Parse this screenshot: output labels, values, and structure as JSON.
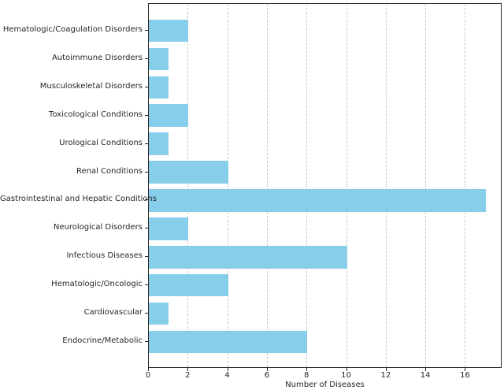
{
  "chart_data": {
    "type": "bar",
    "orientation": "horizontal",
    "title": "",
    "xlabel": "Number of Diseases",
    "ylabel": "",
    "categories": [
      "Hematologic/Coagulation Disorders",
      "Autoimmune Disorders",
      "Musculoskeletal Disorders",
      "Toxicological Conditions",
      "Urological Conditions",
      "Renal Conditions",
      "Gastrointestinal and Hepatic Conditions",
      "Neurological Disorders",
      "Infectious Diseases",
      "Hematologic/Oncologic",
      "Cardiovascular",
      "Endocrine/Metabolic"
    ],
    "values": [
      2,
      1,
      1,
      2,
      1,
      4,
      17,
      2,
      10,
      4,
      1,
      8
    ],
    "xlim": [
      0,
      17.85
    ],
    "xticks": [
      0,
      2,
      4,
      6,
      8,
      10,
      12,
      14,
      16
    ],
    "grid": "x-dashed",
    "legend": "none",
    "bar_color": "#87CEEB",
    "grid_color": "#c9c9c9",
    "spine_color": "#262626",
    "text_color": "#262626",
    "background_color": "#ffffff"
  }
}
